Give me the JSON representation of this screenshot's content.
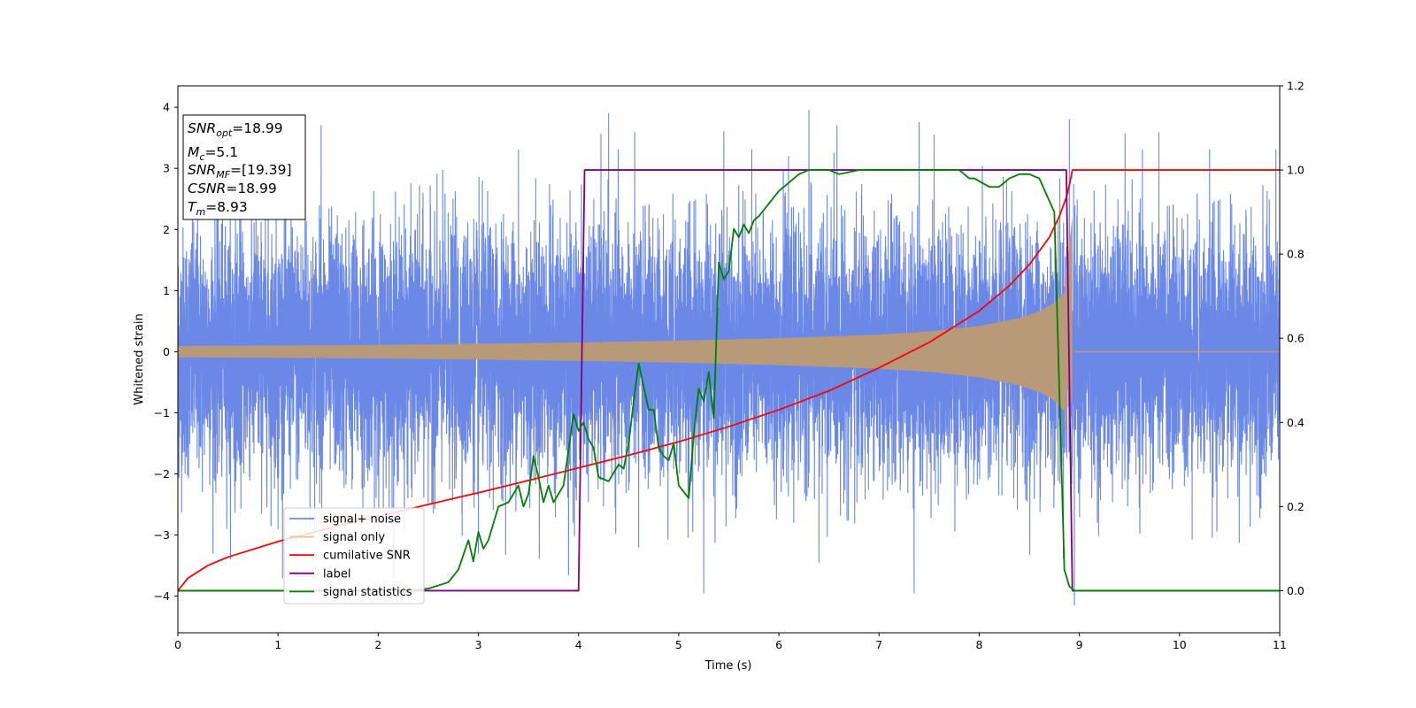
{
  "chart_data": {
    "type": "line",
    "xlabel": "Time (s)",
    "ylabel": "Whitened strain",
    "xlim": [
      0,
      11
    ],
    "ylim": [
      -4.6,
      4.35
    ],
    "y2lim": [
      -0.1,
      1.2
    ],
    "xticks": [
      "0",
      "1",
      "2",
      "3",
      "4",
      "5",
      "6",
      "7",
      "8",
      "9",
      "10",
      "11"
    ],
    "yticks": [
      "−4",
      "−3",
      "−2",
      "−1",
      "0",
      "1",
      "2",
      "3",
      "4"
    ],
    "y2ticks": [
      "0.0",
      "0.2",
      "0.4",
      "0.6",
      "0.8",
      "1.0",
      "1.2"
    ],
    "grid": false,
    "legend_position": "lower-left",
    "colors": {
      "signal_noise": "#6b88e6",
      "signal_only": "#f5c57a",
      "signal_overlap": "#b99a78",
      "cumulative_snr": "#ff0000",
      "label": "#800080",
      "signal_statistics": "#008000"
    },
    "annotation": {
      "lines": [
        {
          "var": "SNR",
          "sub": "opt",
          "value": "=18.99"
        },
        {
          "var": "M",
          "sub": "c",
          "value": "=5.1"
        },
        {
          "var": "SNR",
          "sub": "MF",
          "value": "=[19.39]"
        },
        {
          "var": "CSNR",
          "sub": "",
          "value": "=18.99"
        },
        {
          "var": "T",
          "sub": "m",
          "value": "=8.93"
        }
      ]
    },
    "series": [
      {
        "name": "signal+ noise",
        "axis": "left",
        "description": "white noise, std ~1, ranging roughly -4.2 to 3.95 over 0-11 s",
        "std": 1.0,
        "peaks": [
          [
            0.78,
            3.6
          ],
          [
            1.27,
            3.65
          ],
          [
            1.43,
            3.7
          ],
          [
            3.4,
            3.3
          ],
          [
            4.3,
            3.9
          ],
          [
            5.45,
            3.6
          ],
          [
            6.3,
            3.95
          ],
          [
            6.55,
            3.25
          ],
          [
            7.4,
            3.75
          ],
          [
            7.55,
            3.55
          ],
          [
            8.9,
            3.8
          ],
          [
            10.3,
            3.3
          ],
          [
            0.35,
            -3.3
          ],
          [
            1.0,
            -2.9
          ],
          [
            3.0,
            -3.3
          ],
          [
            3.9,
            -3.65
          ],
          [
            5.25,
            -3.95
          ],
          [
            7.35,
            -3.95
          ],
          [
            8.95,
            -4.15
          ],
          [
            4.6,
            -3.2
          ],
          [
            6.4,
            -3.45
          ]
        ]
      },
      {
        "name": "signal only",
        "axis": "left",
        "description": "chirp envelope growing to merger at Tm, zero afterwards",
        "envelope": [
          [
            0,
            0.09
          ],
          [
            1,
            0.1
          ],
          [
            2,
            0.11
          ],
          [
            3,
            0.13
          ],
          [
            4,
            0.15
          ],
          [
            5,
            0.18
          ],
          [
            6,
            0.22
          ],
          [
            7,
            0.28
          ],
          [
            7.5,
            0.33
          ],
          [
            8.0,
            0.42
          ],
          [
            8.4,
            0.55
          ],
          [
            8.6,
            0.66
          ],
          [
            8.75,
            0.8
          ],
          [
            8.85,
            0.97
          ],
          [
            8.9,
            1.8
          ],
          [
            8.93,
            2.2
          ],
          [
            8.95,
            0
          ]
        ]
      },
      {
        "name": "cumilative SNR",
        "axis": "right",
        "x": [
          0,
          0.1,
          0.3,
          0.5,
          1.0,
          1.5,
          2.0,
          2.5,
          3.0,
          3.5,
          4.0,
          4.5,
          5.0,
          5.5,
          6.0,
          6.5,
          7.0,
          7.5,
          8.0,
          8.3,
          8.5,
          8.7,
          8.8,
          8.87,
          8.91,
          8.93,
          11.0
        ],
        "values": [
          0.0,
          0.03,
          0.06,
          0.08,
          0.117,
          0.148,
          0.177,
          0.205,
          0.233,
          0.262,
          0.292,
          0.322,
          0.354,
          0.39,
          0.43,
          0.475,
          0.53,
          0.59,
          0.665,
          0.725,
          0.775,
          0.84,
          0.89,
          0.935,
          0.975,
          1.0,
          1.0
        ]
      },
      {
        "name": "label",
        "axis": "right",
        "x": [
          0,
          4.0,
          4.06,
          8.87,
          8.93,
          11.0
        ],
        "values": [
          0.0,
          0.0,
          1.0,
          1.0,
          0.0,
          0.0
        ]
      },
      {
        "name": "signal statistics",
        "axis": "right",
        "x": [
          0,
          2.3,
          2.5,
          2.7,
          2.8,
          2.9,
          2.95,
          3.0,
          3.05,
          3.1,
          3.2,
          3.3,
          3.4,
          3.45,
          3.5,
          3.55,
          3.6,
          3.65,
          3.7,
          3.75,
          3.85,
          3.95,
          4.0,
          4.05,
          4.1,
          4.15,
          4.2,
          4.3,
          4.4,
          4.45,
          4.5,
          4.55,
          4.6,
          4.7,
          4.75,
          4.8,
          4.85,
          4.9,
          4.95,
          5.0,
          5.1,
          5.15,
          5.2,
          5.25,
          5.3,
          5.35,
          5.4,
          5.45,
          5.5,
          5.55,
          5.6,
          5.65,
          5.7,
          5.75,
          5.8,
          5.9,
          6.0,
          6.1,
          6.2,
          6.3,
          6.4,
          6.5,
          6.6,
          6.8,
          7.0,
          7.2,
          7.5,
          7.8,
          7.9,
          7.95,
          8.1,
          8.2,
          8.3,
          8.4,
          8.5,
          8.6,
          8.75,
          8.85,
          8.9,
          8.95,
          9.0,
          11.0
        ],
        "values": [
          0.0,
          0.0,
          0.005,
          0.02,
          0.05,
          0.12,
          0.07,
          0.14,
          0.1,
          0.12,
          0.2,
          0.21,
          0.25,
          0.2,
          0.23,
          0.32,
          0.27,
          0.21,
          0.25,
          0.21,
          0.25,
          0.42,
          0.38,
          0.4,
          0.36,
          0.34,
          0.27,
          0.26,
          0.3,
          0.29,
          0.35,
          0.45,
          0.54,
          0.43,
          0.43,
          0.34,
          0.32,
          0.31,
          0.35,
          0.25,
          0.22,
          0.37,
          0.48,
          0.45,
          0.52,
          0.41,
          0.78,
          0.74,
          0.76,
          0.86,
          0.84,
          0.87,
          0.85,
          0.88,
          0.89,
          0.92,
          0.95,
          0.97,
          0.99,
          1.0,
          1.0,
          1.0,
          0.99,
          1.0,
          1.0,
          1.0,
          1.0,
          1.0,
          0.98,
          0.98,
          0.96,
          0.96,
          0.98,
          0.99,
          0.99,
          0.98,
          0.9,
          0.05,
          0.01,
          0.0,
          0.0,
          0.0
        ]
      }
    ]
  }
}
